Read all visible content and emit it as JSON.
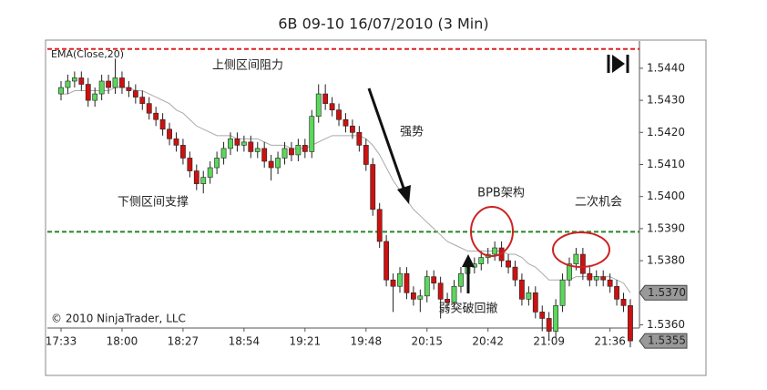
{
  "chart_data": {
    "type": "candlestick",
    "title": "6B 09-10  16/07/2010 (3 Min)",
    "copyright": "© 2010 NinjaTrader, LLC",
    "categories": [
      "17:33",
      null,
      null,
      null,
      null,
      null,
      null,
      null,
      null,
      "18:00",
      null,
      null,
      null,
      null,
      null,
      null,
      null,
      null,
      "18:27",
      null,
      null,
      null,
      null,
      null,
      null,
      null,
      null,
      "18:54",
      null,
      null,
      null,
      null,
      null,
      null,
      null,
      null,
      "19:21",
      null,
      null,
      null,
      null,
      null,
      null,
      null,
      null,
      "19:48",
      null,
      null,
      null,
      null,
      null,
      null,
      null,
      null,
      "20:15",
      null,
      null,
      null,
      null,
      null,
      null,
      null,
      null,
      "20:42",
      null,
      null,
      null,
      null,
      null,
      null,
      null,
      null,
      "21:09",
      null,
      null,
      null,
      null,
      null,
      null,
      null,
      null,
      "21:36",
      null,
      null,
      null
    ],
    "open": [
      1.5432,
      1.5434,
      1.5436,
      1.5437,
      1.5435,
      1.543,
      1.5432,
      1.5436,
      1.5434,
      1.5437,
      1.5434,
      1.5433,
      1.5431,
      1.5429,
      1.5426,
      1.5424,
      1.5421,
      1.5418,
      1.5416,
      1.5412,
      1.5408,
      1.5404,
      1.5406,
      1.5409,
      1.5412,
      1.5415,
      1.5418,
      1.5416,
      1.5417,
      1.5414,
      1.5415,
      1.5411,
      1.5409,
      1.5412,
      1.5415,
      1.5413,
      1.5416,
      1.5414,
      1.5425,
      1.5432,
      1.5429,
      1.5427,
      1.5424,
      1.5422,
      1.542,
      1.5416,
      1.541,
      1.5396,
      1.5386,
      1.5374,
      1.5372,
      1.5376,
      1.537,
      1.5368,
      1.5369,
      1.5375,
      1.5373,
      1.5368,
      1.5367,
      1.5372,
      1.5376,
      1.5378,
      1.5379,
      1.5381,
      1.5382,
      1.5384,
      1.538,
      1.5378,
      1.5374,
      1.5368,
      1.537,
      1.5364,
      1.5362,
      1.5358,
      1.5366,
      1.5374,
      1.5379,
      1.5382,
      1.5376,
      1.5374,
      1.5375,
      1.5374,
      1.5372,
      1.5368,
      1.5366
    ],
    "high": [
      1.5436,
      1.5438,
      1.5439,
      1.5439,
      1.5437,
      1.5434,
      1.5438,
      1.5438,
      1.5443,
      1.5439,
      1.5436,
      1.5435,
      1.5433,
      1.5431,
      1.5428,
      1.5426,
      1.5423,
      1.542,
      1.5418,
      1.5414,
      1.541,
      1.5408,
      1.5411,
      1.5414,
      1.5417,
      1.542,
      1.542,
      1.5419,
      1.5419,
      1.5417,
      1.5417,
      1.5413,
      1.5414,
      1.5417,
      1.5417,
      1.5418,
      1.5418,
      1.5427,
      1.5435,
      1.5435,
      1.5431,
      1.5429,
      1.5426,
      1.5424,
      1.5422,
      1.5418,
      1.5412,
      1.5398,
      1.5388,
      1.5376,
      1.5378,
      1.5378,
      1.5372,
      1.5371,
      1.5377,
      1.5377,
      1.5375,
      1.537,
      1.5374,
      1.5378,
      1.538,
      1.5381,
      1.5383,
      1.5384,
      1.5386,
      1.5386,
      1.5382,
      1.538,
      1.5376,
      1.5372,
      1.5372,
      1.5366,
      1.5364,
      1.5368,
      1.5376,
      1.5381,
      1.5384,
      1.5384,
      1.5378,
      1.5377,
      1.5377,
      1.5376,
      1.5374,
      1.537,
      1.5368
    ],
    "low": [
      1.543,
      1.5432,
      1.5434,
      1.5433,
      1.5428,
      1.5428,
      1.543,
      1.5432,
      1.5432,
      1.5432,
      1.5431,
      1.5429,
      1.5427,
      1.5424,
      1.5422,
      1.5419,
      1.5416,
      1.5414,
      1.541,
      1.5406,
      1.5402,
      1.5401,
      1.5404,
      1.5407,
      1.541,
      1.5413,
      1.5414,
      1.5414,
      1.5412,
      1.5412,
      1.5409,
      1.5405,
      1.5407,
      1.541,
      1.5411,
      1.5411,
      1.5412,
      1.5412,
      1.5423,
      1.5427,
      1.5425,
      1.5422,
      1.542,
      1.5418,
      1.5414,
      1.5408,
      1.5394,
      1.5384,
      1.5372,
      1.5364,
      1.537,
      1.5368,
      1.5366,
      1.5364,
      1.5367,
      1.5371,
      1.5362,
      1.5365,
      1.5365,
      1.537,
      1.5374,
      1.5376,
      1.5377,
      1.5379,
      1.538,
      1.5378,
      1.5376,
      1.5372,
      1.5366,
      1.5366,
      1.5362,
      1.5358,
      1.5355,
      1.5356,
      1.5364,
      1.5372,
      1.5377,
      1.5374,
      1.5372,
      1.5372,
      1.5372,
      1.537,
      1.5366,
      1.5364,
      1.5353
    ],
    "close": [
      1.5434,
      1.5436,
      1.5437,
      1.5435,
      1.543,
      1.5432,
      1.5436,
      1.5434,
      1.5437,
      1.5434,
      1.5433,
      1.5431,
      1.5429,
      1.5426,
      1.5424,
      1.5421,
      1.5418,
      1.5416,
      1.5412,
      1.5408,
      1.5404,
      1.5406,
      1.5409,
      1.5412,
      1.5415,
      1.5418,
      1.5416,
      1.5417,
      1.5414,
      1.5415,
      1.5411,
      1.5409,
      1.5412,
      1.5415,
      1.5413,
      1.5416,
      1.5414,
      1.5425,
      1.5432,
      1.5429,
      1.5427,
      1.5424,
      1.5422,
      1.542,
      1.5416,
      1.541,
      1.5396,
      1.5386,
      1.5374,
      1.5372,
      1.5376,
      1.537,
      1.5368,
      1.5369,
      1.5375,
      1.5373,
      1.5368,
      1.5367,
      1.5372,
      1.5376,
      1.5378,
      1.5379,
      1.5381,
      1.5382,
      1.5384,
      1.538,
      1.5378,
      1.5374,
      1.5368,
      1.537,
      1.5364,
      1.5362,
      1.5358,
      1.5366,
      1.5374,
      1.5379,
      1.5382,
      1.5376,
      1.5374,
      1.5375,
      1.5374,
      1.5372,
      1.5368,
      1.5366,
      1.5355
    ],
    "up_color": "#5cd65c",
    "down_color": "#cc1111",
    "ema": {
      "name": "EMA(Close,20)",
      "color": "#aaaaaa",
      "values": [
        1.5432,
        1.5432,
        1.5433,
        1.5433,
        1.5433,
        1.5433,
        1.5433,
        1.5433,
        1.5434,
        1.5434,
        1.5434,
        1.5433,
        1.5433,
        1.5432,
        1.5431,
        1.543,
        1.5429,
        1.5427,
        1.5426,
        1.5424,
        1.5422,
        1.5421,
        1.542,
        1.5419,
        1.5419,
        1.5419,
        1.5418,
        1.5418,
        1.5418,
        1.5418,
        1.5417,
        1.5416,
        1.5416,
        1.5416,
        1.5415,
        1.5415,
        1.5415,
        1.5416,
        1.5417,
        1.5418,
        1.5419,
        1.5419,
        1.5419,
        1.5419,
        1.5419,
        1.5418,
        1.5416,
        1.5413,
        1.5409,
        1.5405,
        1.5402,
        1.5399,
        1.5396,
        1.5394,
        1.5392,
        1.539,
        1.5388,
        1.5386,
        1.5385,
        1.5384,
        1.5383,
        1.5383,
        1.5383,
        1.5383,
        1.5383,
        1.5383,
        1.5382,
        1.5382,
        1.5381,
        1.5379,
        1.5378,
        1.5376,
        1.5374,
        1.5374,
        1.5374,
        1.5374,
        1.5375,
        1.5375,
        1.5375,
        1.5375,
        1.5375,
        1.5375,
        1.5374,
        1.5373,
        1.537
      ]
    },
    "last_markers": [
      {
        "value": 1.537,
        "label": "1.5370",
        "color": "#999999"
      },
      {
        "value": 1.5355,
        "label": "1.5355",
        "color": "#999999"
      }
    ],
    "levels": [
      {
        "value": 1.5446,
        "label": "上侧区间阻力",
        "color": "#dd2222"
      },
      {
        "value": 1.5389,
        "label": "下侧区间支撑",
        "color": "#228822"
      }
    ],
    "annotations": [
      "强势",
      "BPB架构",
      "二次机会",
      "弱突破回撤"
    ],
    "ylim": [
      1.5359,
      1.54485
    ],
    "yticks": [
      {
        "value": 1.536,
        "label": "1.5360"
      },
      {
        "value": 1.537,
        "label": "1.5370"
      },
      {
        "value": 1.538,
        "label": "1.5380"
      },
      {
        "value": 1.539,
        "label": "1.5390"
      },
      {
        "value": 1.54,
        "label": "1.5400"
      },
      {
        "value": 1.541,
        "label": "1.5410"
      },
      {
        "value": 1.542,
        "label": "1.5420"
      },
      {
        "value": 1.543,
        "label": "1.5430"
      },
      {
        "value": 1.544,
        "label": "1.5440"
      }
    ]
  }
}
